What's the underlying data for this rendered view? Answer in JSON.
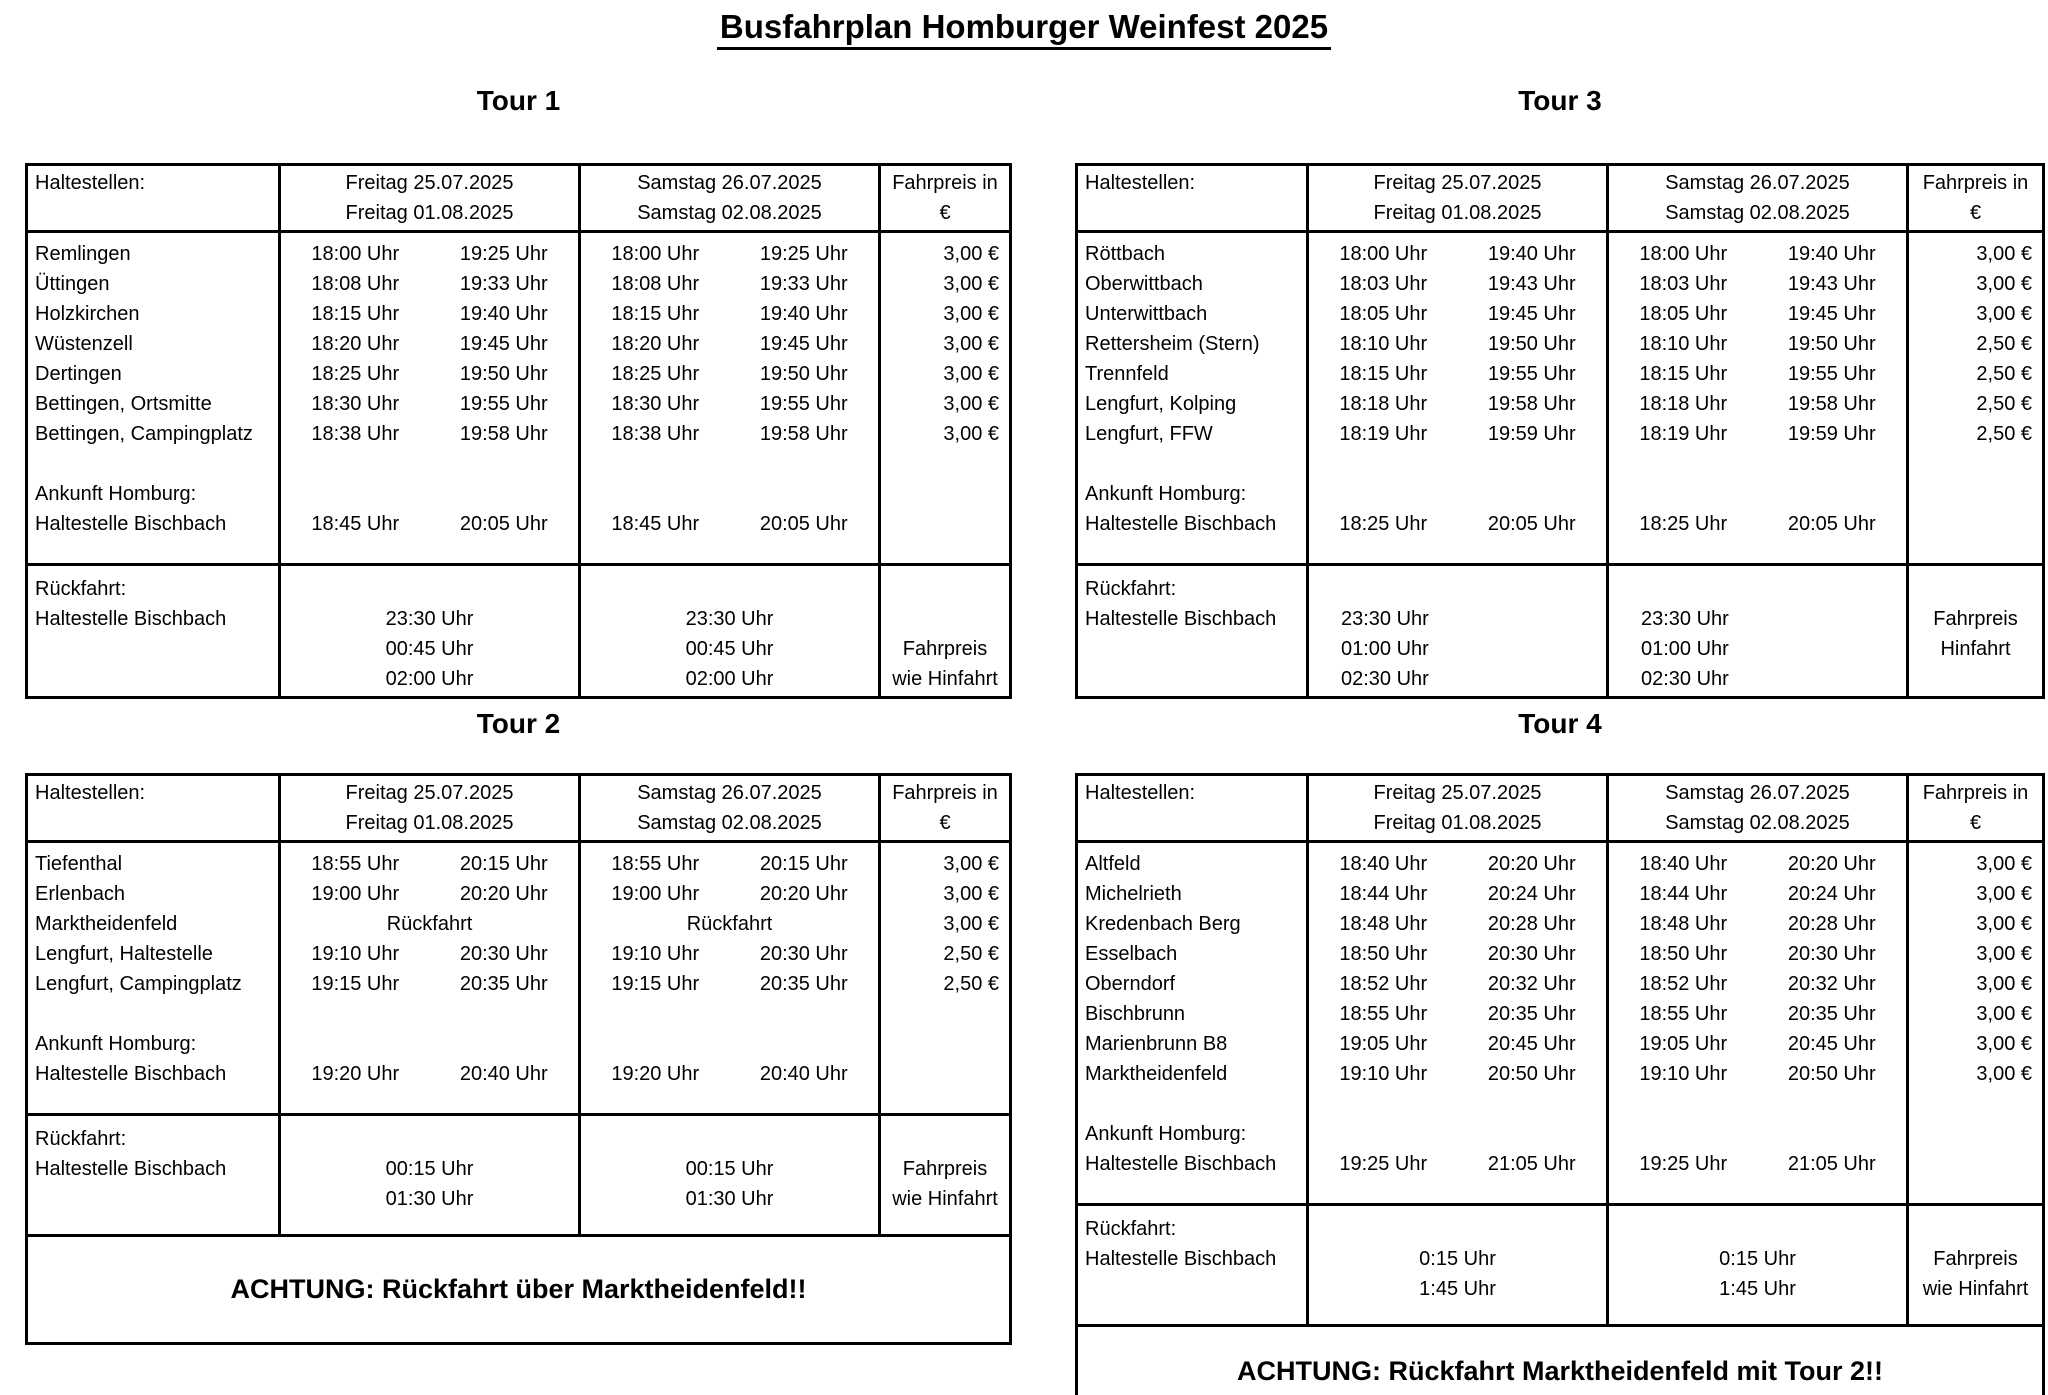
{
  "title": "Busfahrplan Homburger Weinfest 2025",
  "header": {
    "stops_label": "Haltestellen:",
    "friday": [
      "Freitag 25.07.2025",
      "Freitag 01.08.2025"
    ],
    "saturday": [
      "Samstag 26.07.2025",
      "Samstag 02.08.2025"
    ],
    "price": [
      "Fahrpreis in",
      "€"
    ]
  },
  "tours": [
    {
      "name": "Tour 1",
      "stops": [
        {
          "name": "Remlingen",
          "t1": "18:00 Uhr",
          "t2": "19:25 Uhr",
          "price": "3,00 €"
        },
        {
          "name": "Üttingen",
          "t1": "18:08 Uhr",
          "t2": "19:33 Uhr",
          "price": "3,00 €"
        },
        {
          "name": "Holzkirchen",
          "t1": "18:15 Uhr",
          "t2": "19:40 Uhr",
          "price": "3,00 €"
        },
        {
          "name": "Wüstenzell",
          "t1": "18:20 Uhr",
          "t2": "19:45 Uhr",
          "price": "3,00 €"
        },
        {
          "name": "Dertingen",
          "t1": "18:25 Uhr",
          "t2": "19:50 Uhr",
          "price": "3,00 €"
        },
        {
          "name": "Bettingen, Ortsmitte",
          "t1": "18:30 Uhr",
          "t2": "19:55 Uhr",
          "price": "3,00 €"
        },
        {
          "name": "Bettingen, Campingplatz",
          "t1": "18:38 Uhr",
          "t2": "19:58 Uhr",
          "price": "3,00 €"
        }
      ],
      "arrival_label": "Ankunft Homburg:",
      "arrival_stop": "Haltestelle Bischbach",
      "arrival_t1": "18:45 Uhr",
      "arrival_t2": "20:05 Uhr",
      "return_label": "Rückfahrt:",
      "return_stop": "Haltestelle Bischbach",
      "return_times": [
        "23:30 Uhr",
        "00:45 Uhr",
        "02:00 Uhr"
      ],
      "return_time_align": "center",
      "return_price_lines": [
        "Fahrpreis",
        "wie Hinfahrt"
      ],
      "return_price_align": "bottom",
      "notice": null
    },
    {
      "name": "Tour 2",
      "stops": [
        {
          "name": "Tiefenthal",
          "t1": "18:55 Uhr",
          "t2": "20:15 Uhr",
          "price": "3,00 €"
        },
        {
          "name": "Erlenbach",
          "t1": "19:00 Uhr",
          "t2": "20:20 Uhr",
          "price": "3,00 €"
        },
        {
          "name": "Marktheidenfeld",
          "note": "Rückfahrt",
          "price": "3,00 €"
        },
        {
          "name": "Lengfurt, Haltestelle",
          "t1": "19:10 Uhr",
          "t2": "20:30 Uhr",
          "price": "2,50 €"
        },
        {
          "name": "Lengfurt, Campingplatz",
          "t1": "19:15 Uhr",
          "t2": "20:35 Uhr",
          "price": "2,50 €"
        }
      ],
      "arrival_label": "Ankunft Homburg:",
      "arrival_stop": "Haltestelle Bischbach",
      "arrival_t1": "19:20 Uhr",
      "arrival_t2": "20:40 Uhr",
      "return_label": "Rückfahrt:",
      "return_stop": "Haltestelle Bischbach",
      "return_times": [
        "00:15 Uhr",
        "01:30 Uhr"
      ],
      "return_time_align": "center",
      "return_price_lines": [
        "Fahrpreis",
        "wie Hinfahrt"
      ],
      "return_price_align": "bottom",
      "notice": "ACHTUNG: Rückfahrt über Marktheidenfeld!!"
    },
    {
      "name": "Tour 3",
      "stops": [
        {
          "name": "Röttbach",
          "t1": "18:00 Uhr",
          "t2": "19:40 Uhr",
          "price": "3,00 €"
        },
        {
          "name": "Oberwittbach",
          "t1": "18:03 Uhr",
          "t2": "19:43 Uhr",
          "price": "3,00 €"
        },
        {
          "name": "Unterwittbach",
          "t1": "18:05 Uhr",
          "t2": "19:45 Uhr",
          "price": "3,00 €"
        },
        {
          "name": "Rettersheim (Stern)",
          "t1": "18:10 Uhr",
          "t2": "19:50 Uhr",
          "price": "2,50 €"
        },
        {
          "name": "Trennfeld",
          "t1": "18:15 Uhr",
          "t2": "19:55 Uhr",
          "price": "2,50 €"
        },
        {
          "name": "Lengfurt, Kolping",
          "t1": "18:18 Uhr",
          "t2": "19:58 Uhr",
          "price": "2,50 €"
        },
        {
          "name": "Lengfurt, FFW",
          "t1": "18:19 Uhr",
          "t2": "19:59 Uhr",
          "price": "2,50 €"
        }
      ],
      "arrival_label": "Ankunft Homburg:",
      "arrival_stop": "Haltestelle Bischbach",
      "arrival_t1": "18:25 Uhr",
      "arrival_t2": "20:05 Uhr",
      "return_label": "Rückfahrt:",
      "return_stop": "Haltestelle Bischbach",
      "return_times": [
        "23:30 Uhr",
        "01:00 Uhr",
        "02:30 Uhr"
      ],
      "return_time_align": "left",
      "return_price_lines": [
        "Fahrpreis",
        "Hinfahrt"
      ],
      "return_price_align": "middle",
      "notice": null
    },
    {
      "name": "Tour 4",
      "stops": [
        {
          "name": "Altfeld",
          "t1": "18:40 Uhr",
          "t2": "20:20 Uhr",
          "price": "3,00 €"
        },
        {
          "name": "Michelrieth",
          "t1": "18:44 Uhr",
          "t2": "20:24 Uhr",
          "price": "3,00 €"
        },
        {
          "name": "Kredenbach Berg",
          "t1": "18:48 Uhr",
          "t2": "20:28 Uhr",
          "price": "3,00 €"
        },
        {
          "name": "Esselbach",
          "t1": "18:50 Uhr",
          "t2": "20:30 Uhr",
          "price": "3,00 €"
        },
        {
          "name": "Oberndorf",
          "t1": "18:52 Uhr",
          "t2": "20:32 Uhr",
          "price": "3,00 €"
        },
        {
          "name": "Bischbrunn",
          "t1": "18:55 Uhr",
          "t2": "20:35 Uhr",
          "price": "3,00 €"
        },
        {
          "name": "Marienbrunn B8",
          "t1": "19:05 Uhr",
          "t2": "20:45 Uhr",
          "price": "3,00 €"
        },
        {
          "name": "Marktheidenfeld",
          "t1": "19:10 Uhr",
          "t2": "20:50 Uhr",
          "price": "3,00 €"
        }
      ],
      "arrival_label": "Ankunft Homburg:",
      "arrival_stop": "Haltestelle Bischbach",
      "arrival_t1": "19:25 Uhr",
      "arrival_t2": "21:05 Uhr",
      "return_label": "Rückfahrt:",
      "return_stop": "Haltestelle Bischbach",
      "return_times": [
        "0:15 Uhr",
        "1:45 Uhr"
      ],
      "return_time_align": "center",
      "return_price_lines": [
        "Fahrpreis",
        "wie Hinfahrt"
      ],
      "return_price_align": "bottom",
      "notice": "ACHTUNG: Rückfahrt Marktheidenfeld mit Tour 2!!"
    }
  ]
}
